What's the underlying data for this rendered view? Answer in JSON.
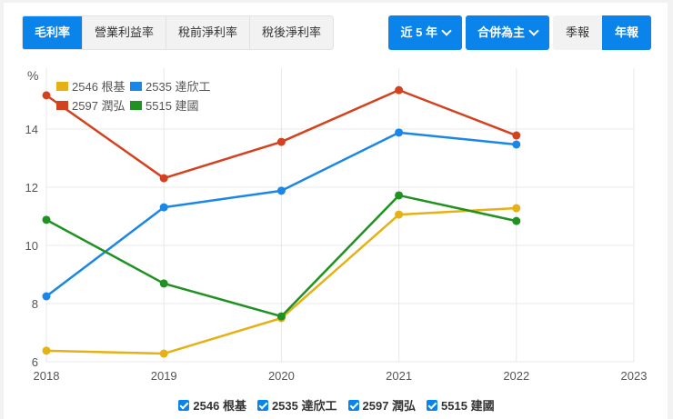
{
  "tabs": [
    {
      "label": "毛利率",
      "active": true
    },
    {
      "label": "營業利益率",
      "active": false
    },
    {
      "label": "稅前淨利率",
      "active": false
    },
    {
      "label": "稅後淨利率",
      "active": false
    }
  ],
  "controls": {
    "period_dropdown": "近 5 年",
    "consolidation_dropdown": "合併為主",
    "quarterly_label": "季報",
    "annual_label": "年報",
    "annual_active": true
  },
  "colors": {
    "accent": "#0a84ea",
    "series_2546": "#e6b116",
    "series_2535": "#1a87e6",
    "series_2597": "#d4411e",
    "series_5515": "#1f9222"
  },
  "legend_top": [
    {
      "label": "2546 根基",
      "color": "#e6b116"
    },
    {
      "label": "2535 達欣工",
      "color": "#1a87e6"
    },
    {
      "label": "2597 潤弘",
      "color": "#d4411e"
    },
    {
      "label": "5515 建國",
      "color": "#1f9222"
    }
  ],
  "legend_bottom": [
    {
      "label": "2546 根基",
      "checked": true
    },
    {
      "label": "2535 達欣工",
      "checked": true
    },
    {
      "label": "2597 潤弘",
      "checked": true
    },
    {
      "label": "5515 建國",
      "checked": true
    }
  ],
  "chart_data": {
    "type": "line",
    "title": "毛利率",
    "xlabel": "",
    "ylabel": "%",
    "x": [
      2018,
      2019,
      2020,
      2021,
      2022
    ],
    "x_ticks": [
      "2018",
      "2019",
      "2020",
      "2021",
      "2022",
      "2023"
    ],
    "y_ticks": [
      "6",
      "8",
      "10",
      "12",
      "14"
    ],
    "ylim": [
      6,
      15.5
    ],
    "xlim": [
      2018,
      2023
    ],
    "grid": true,
    "legend_position": "top-left inside",
    "series": [
      {
        "name": "2546 根基",
        "color": "#e6b116",
        "values": [
          6.38,
          6.28,
          7.5,
          11.06,
          11.28
        ]
      },
      {
        "name": "2535 達欣工",
        "color": "#1a87e6",
        "values": [
          8.25,
          11.31,
          11.88,
          13.88,
          13.47
        ]
      },
      {
        "name": "2597 潤弘",
        "color": "#d4411e",
        "values": [
          15.16,
          12.31,
          13.56,
          15.34,
          13.78
        ]
      },
      {
        "name": "5515 建國",
        "color": "#1f9222",
        "values": [
          10.88,
          8.69,
          7.56,
          11.72,
          10.84
        ]
      }
    ]
  }
}
